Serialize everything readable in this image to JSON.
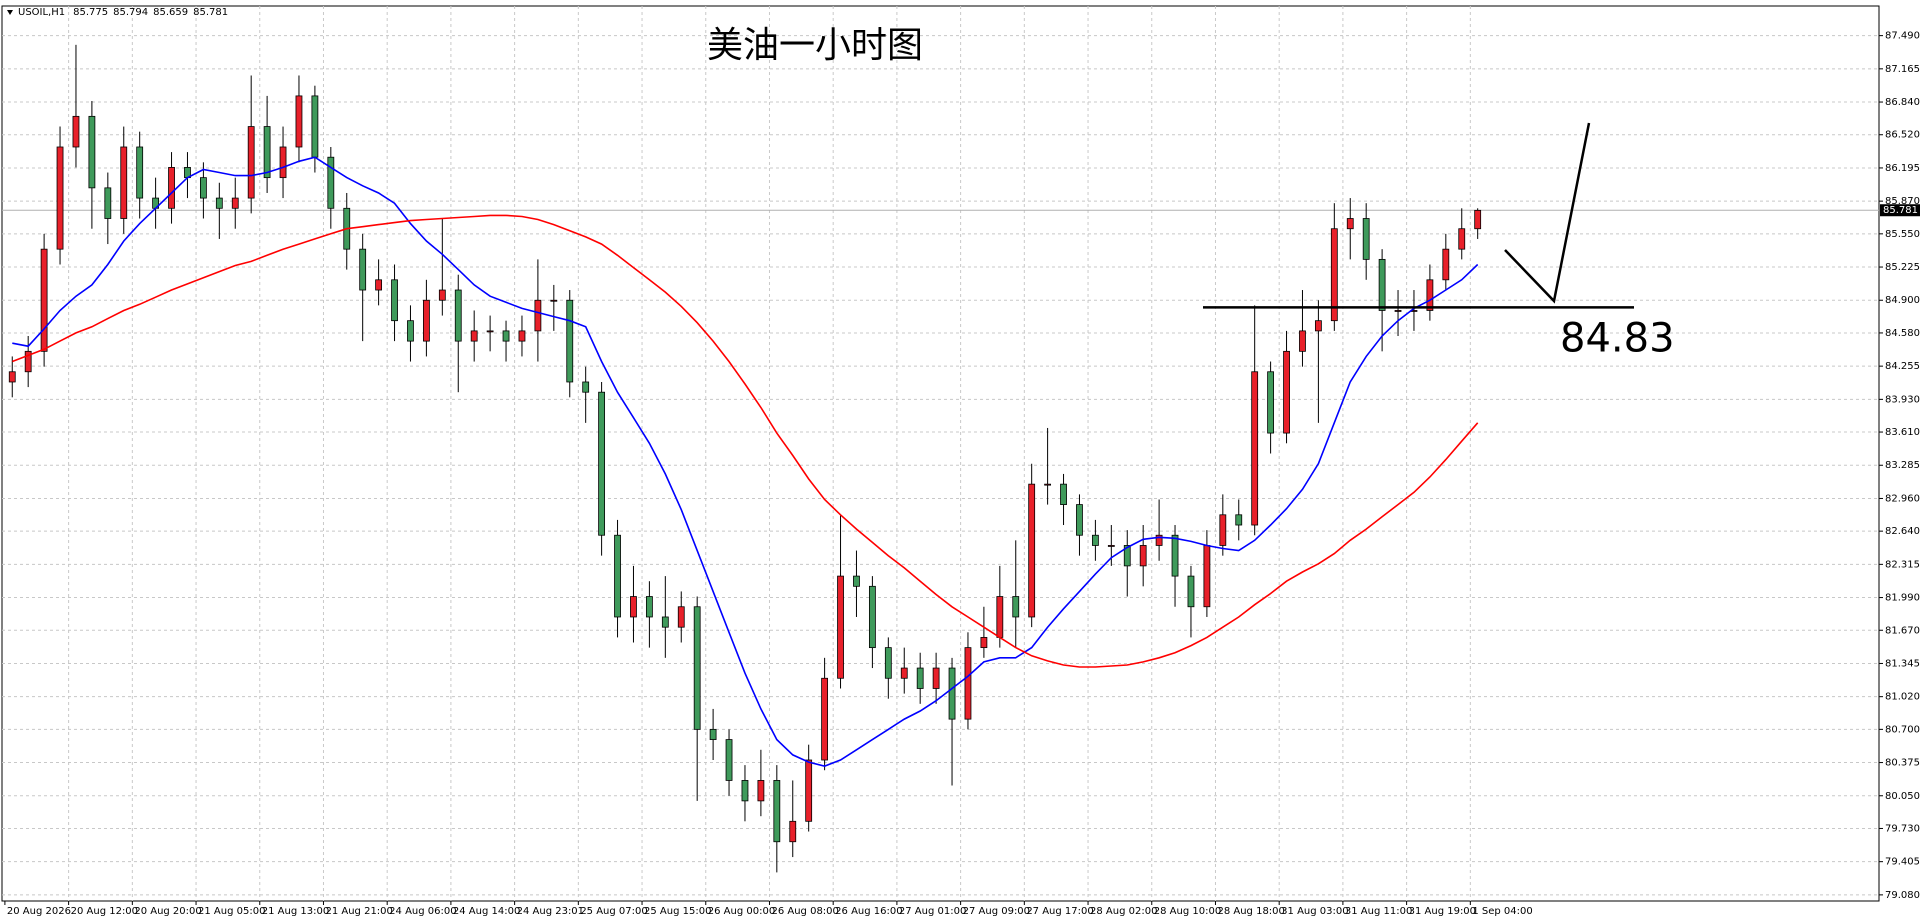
{
  "chart_data": {
    "type": "candlestick",
    "title": "美油一小时图",
    "symbol": "USOIL,H1",
    "quote": [
      85.775,
      85.794,
      85.659,
      85.781
    ],
    "annotation": 84.83,
    "up_color": "#e8202a",
    "down_color": "#3f9a5b",
    "grid": true,
    "ylim": [
      79.02,
      87.78
    ],
    "yticks": [
      {
        "value": 87.49,
        "label": "87.490"
      },
      {
        "value": 87.165,
        "label": "87.165"
      },
      {
        "value": 86.84,
        "label": "86.840"
      },
      {
        "value": 86.52,
        "label": "86.520"
      },
      {
        "value": 86.195,
        "label": "86.195"
      },
      {
        "value": 85.87,
        "label": "85.870"
      },
      {
        "value": 85.55,
        "label": "85.550"
      },
      {
        "value": 85.225,
        "label": "85.225"
      },
      {
        "value": 84.9,
        "label": "84.900"
      },
      {
        "value": 84.58,
        "label": "84.580"
      },
      {
        "value": 84.255,
        "label": "84.255"
      },
      {
        "value": 83.93,
        "label": "83.930"
      },
      {
        "value": 83.61,
        "label": "83.610"
      },
      {
        "value": 83.285,
        "label": "83.285"
      },
      {
        "value": 82.96,
        "label": "82.960"
      },
      {
        "value": 82.64,
        "label": "82.640"
      },
      {
        "value": 82.315,
        "label": "82.315"
      },
      {
        "value": 81.99,
        "label": "81.990"
      },
      {
        "value": 81.67,
        "label": "81.670"
      },
      {
        "value": 81.345,
        "label": "81.345"
      },
      {
        "value": 81.02,
        "label": "81.020"
      },
      {
        "value": 80.7,
        "label": "80.700"
      },
      {
        "value": 80.375,
        "label": "80.375"
      },
      {
        "value": 80.05,
        "label": "80.050"
      },
      {
        "value": 79.73,
        "label": "79.730"
      },
      {
        "value": 79.405,
        "label": "79.405"
      },
      {
        "value": 79.08,
        "label": "79.080"
      }
    ],
    "categories": [
      "20 Aug 2026",
      null,
      null,
      null,
      "20 Aug 12:00",
      null,
      null,
      null,
      "20 Aug 20:00",
      null,
      null,
      null,
      "21 Aug 05:00",
      null,
      null,
      null,
      "21 Aug 13:00",
      null,
      null,
      null,
      "21 Aug 21:00",
      null,
      null,
      null,
      "24 Aug 06:00",
      null,
      null,
      null,
      "24 Aug 14:00",
      null,
      null,
      null,
      "24 Aug 23:01",
      null,
      null,
      null,
      "25 Aug 07:00",
      null,
      null,
      null,
      "25 Aug 15:00",
      null,
      null,
      null,
      "26 Aug 00:00",
      null,
      null,
      null,
      "26 Aug 08:00",
      null,
      null,
      null,
      "26 Aug 16:00",
      null,
      null,
      null,
      "27 Aug 01:00",
      null,
      null,
      null,
      "27 Aug 09:00",
      null,
      null,
      null,
      "27 Aug 17:00",
      null,
      null,
      null,
      "28 Aug 02:00",
      null,
      null,
      null,
      "28 Aug 10:00",
      null,
      null,
      null,
      "28 Aug 18:00",
      null,
      null,
      null,
      "31 Aug 03:00",
      null,
      null,
      null,
      "31 Aug 11:00",
      null,
      null,
      null,
      "31 Aug 19:00",
      null,
      null,
      null,
      "1 Sep 04:00"
    ],
    "open": [
      84.1,
      84.2,
      84.4,
      85.4,
      86.4,
      86.7,
      86.0,
      85.7,
      86.4,
      85.9,
      85.8,
      86.2,
      86.1,
      85.9,
      85.8,
      85.9,
      86.6,
      86.1,
      86.4,
      86.9,
      86.3,
      85.8,
      85.4,
      85.0,
      85.1,
      84.7,
      84.5,
      84.9,
      85.0,
      84.5,
      84.6,
      84.6,
      84.5,
      84.6,
      84.9,
      84.9,
      84.1,
      84.0,
      82.6,
      81.8,
      82.0,
      81.8,
      81.7,
      81.9,
      80.7,
      80.6,
      80.2,
      80.0,
      80.2,
      79.6,
      79.8,
      80.4,
      81.2,
      82.2,
      82.1,
      81.5,
      81.2,
      81.3,
      81.1,
      81.3,
      80.8,
      81.5,
      81.6,
      82.0,
      81.8,
      83.1,
      83.1,
      82.9,
      82.6,
      82.5,
      82.5,
      82.3,
      82.5,
      82.6,
      82.2,
      81.9,
      82.5,
      82.8,
      82.7,
      84.2,
      83.6,
      84.4,
      84.6,
      84.7,
      85.6,
      85.7,
      85.3,
      84.8,
      84.8,
      84.8,
      85.1,
      85.4,
      85.6
    ],
    "high": [
      84.35,
      84.55,
      85.55,
      86.6,
      87.4,
      86.85,
      86.15,
      86.6,
      86.55,
      86.1,
      86.35,
      86.35,
      86.25,
      86.05,
      86.1,
      87.1,
      86.9,
      86.6,
      87.1,
      87.0,
      86.4,
      85.95,
      85.55,
      85.3,
      85.25,
      84.85,
      85.1,
      85.7,
      85.15,
      84.8,
      84.75,
      84.7,
      84.75,
      85.3,
      85.05,
      85.0,
      84.25,
      84.1,
      82.75,
      82.3,
      82.15,
      82.2,
      82.05,
      82.0,
      80.9,
      80.7,
      80.35,
      80.5,
      80.35,
      80.2,
      80.55,
      81.4,
      82.8,
      82.45,
      82.2,
      81.6,
      81.5,
      81.45,
      81.45,
      81.4,
      81.65,
      81.9,
      82.3,
      82.55,
      83.3,
      83.65,
      83.2,
      83.0,
      82.75,
      82.7,
      82.65,
      82.7,
      82.95,
      82.7,
      82.3,
      82.65,
      83.0,
      82.95,
      84.85,
      84.3,
      84.6,
      85.0,
      84.9,
      85.85,
      85.9,
      85.85,
      85.4,
      85.0,
      85.0,
      85.25,
      85.55,
      85.8,
      85.8
    ],
    "low": [
      83.95,
      84.05,
      84.25,
      85.25,
      86.2,
      85.6,
      85.45,
      85.55,
      85.7,
      85.6,
      85.65,
      85.9,
      85.7,
      85.5,
      85.6,
      85.75,
      85.95,
      85.9,
      86.25,
      86.15,
      85.6,
      85.2,
      84.5,
      84.85,
      84.5,
      84.3,
      84.35,
      84.75,
      84.0,
      84.3,
      84.4,
      84.3,
      84.35,
      84.3,
      84.6,
      83.95,
      83.7,
      82.4,
      81.6,
      81.55,
      81.5,
      81.4,
      81.55,
      80.0,
      80.4,
      80.05,
      79.8,
      79.85,
      79.3,
      79.45,
      79.7,
      80.3,
      81.1,
      81.8,
      81.3,
      81.0,
      81.05,
      80.95,
      80.95,
      80.15,
      80.7,
      81.4,
      81.5,
      81.5,
      81.7,
      82.9,
      82.7,
      82.4,
      82.35,
      82.3,
      82.0,
      82.1,
      82.35,
      81.9,
      81.6,
      81.8,
      82.4,
      82.55,
      82.6,
      83.4,
      83.5,
      84.25,
      83.7,
      84.6,
      85.3,
      85.1,
      84.4,
      84.55,
      84.6,
      84.7,
      85.0,
      85.3,
      85.5
    ],
    "close": [
      84.2,
      84.4,
      85.4,
      86.4,
      86.7,
      86.0,
      85.7,
      86.4,
      85.9,
      85.8,
      86.2,
      86.1,
      85.9,
      85.8,
      85.9,
      86.6,
      86.1,
      86.4,
      86.9,
      86.3,
      85.8,
      85.4,
      85.0,
      85.1,
      84.7,
      84.5,
      84.9,
      85.0,
      84.5,
      84.6,
      84.6,
      84.5,
      84.6,
      84.9,
      84.9,
      84.1,
      84.0,
      82.6,
      81.8,
      82.0,
      81.8,
      81.7,
      81.9,
      80.7,
      80.6,
      80.2,
      80.0,
      80.2,
      79.6,
      79.8,
      80.4,
      81.2,
      82.2,
      82.1,
      81.5,
      81.2,
      81.3,
      81.1,
      81.3,
      80.8,
      81.5,
      81.6,
      82.0,
      81.8,
      83.1,
      83.1,
      82.9,
      82.6,
      82.5,
      82.5,
      82.3,
      82.5,
      82.6,
      82.2,
      81.9,
      82.5,
      82.8,
      82.7,
      84.2,
      83.6,
      84.4,
      84.6,
      84.7,
      85.6,
      85.7,
      85.3,
      84.8,
      84.8,
      84.8,
      85.1,
      85.4,
      85.6,
      85.78
    ],
    "moving_averages": [
      {
        "color": "#0000ff",
        "values": [
          84.48,
          84.45,
          84.62,
          84.8,
          84.94,
          85.05,
          85.25,
          85.48,
          85.65,
          85.8,
          85.95,
          86.1,
          86.18,
          86.15,
          86.12,
          86.12,
          86.15,
          86.2,
          86.26,
          86.3,
          86.2,
          86.1,
          86.02,
          85.95,
          85.85,
          85.65,
          85.48,
          85.35,
          85.2,
          85.05,
          84.94,
          84.88,
          84.82,
          84.78,
          84.74,
          84.7,
          84.64,
          84.3,
          84.0,
          83.75,
          83.5,
          83.2,
          82.85,
          82.45,
          82.05,
          81.65,
          81.25,
          80.9,
          80.6,
          80.45,
          80.38,
          80.34,
          80.4,
          80.5,
          80.6,
          80.7,
          80.8,
          80.88,
          80.98,
          81.1,
          81.22,
          81.36,
          81.4,
          81.4,
          81.5,
          81.7,
          81.88,
          82.05,
          82.22,
          82.38,
          82.48,
          82.56,
          82.58,
          82.57,
          82.54,
          82.5,
          82.47,
          82.45,
          82.55,
          82.7,
          82.86,
          83.05,
          83.3,
          83.7,
          84.1,
          84.35,
          84.55,
          84.7,
          84.82,
          84.9,
          85.0,
          85.1,
          85.25
        ]
      },
      {
        "color": "#ff0000",
        "values": [
          84.3,
          84.36,
          84.42,
          84.5,
          84.58,
          84.64,
          84.72,
          84.8,
          84.86,
          84.93,
          85.0,
          85.06,
          85.12,
          85.18,
          85.24,
          85.28,
          85.34,
          85.4,
          85.45,
          85.5,
          85.55,
          85.6,
          85.62,
          85.64,
          85.66,
          85.68,
          85.69,
          85.7,
          85.71,
          85.72,
          85.73,
          85.73,
          85.72,
          85.69,
          85.64,
          85.58,
          85.52,
          85.45,
          85.34,
          85.22,
          85.1,
          84.98,
          84.84,
          84.68,
          84.5,
          84.3,
          84.08,
          83.85,
          83.6,
          83.38,
          83.15,
          82.95,
          82.8,
          82.66,
          82.53,
          82.4,
          82.28,
          82.15,
          82.02,
          81.9,
          81.8,
          81.7,
          81.6,
          81.5,
          81.42,
          81.37,
          81.33,
          81.31,
          81.31,
          81.32,
          81.33,
          81.36,
          81.4,
          81.45,
          81.52,
          81.6,
          81.7,
          81.8,
          81.92,
          82.03,
          82.15,
          82.24,
          82.32,
          82.42,
          82.55,
          82.66,
          82.78,
          82.9,
          83.02,
          83.17,
          83.34,
          83.52,
          83.7
        ]
      }
    ]
  }
}
